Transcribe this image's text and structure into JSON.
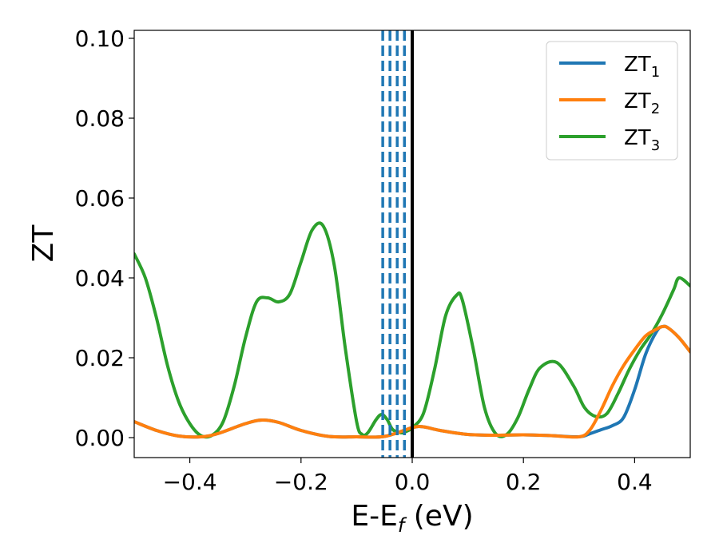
{
  "chart_data": {
    "type": "line",
    "title": "",
    "xlabel": "E-E",
    "xlabel_sub": "f",
    "xlabel_unit": " (eV)",
    "ylabel": "ZT",
    "xlim": [
      -0.5,
      0.5
    ],
    "ylim": [
      -0.005,
      0.102
    ],
    "xticks": [
      -0.4,
      -0.2,
      0.0,
      0.2,
      0.4
    ],
    "xtick_labels": [
      "−0.4",
      "−0.2",
      "0.0",
      "0.2",
      "0.4"
    ],
    "yticks": [
      0.0,
      0.02,
      0.04,
      0.06,
      0.08,
      0.1
    ],
    "ytick_labels": [
      "0.00",
      "0.02",
      "0.04",
      "0.06",
      "0.08",
      "0.10"
    ],
    "grid": false,
    "legend_position": "top-right",
    "vlines": [
      {
        "x": 0.0,
        "color": "#000000",
        "style": "solid"
      },
      {
        "x": -0.053,
        "color": "#1f77b4",
        "style": "dashed"
      },
      {
        "x": -0.04,
        "color": "#1f77b4",
        "style": "dashed"
      },
      {
        "x": -0.027,
        "color": "#1f77b4",
        "style": "dashed"
      },
      {
        "x": -0.014,
        "color": "#1f77b4",
        "style": "dashed"
      }
    ],
    "series": [
      {
        "name": "ZT",
        "name_sub": "1",
        "color": "#1f77b4",
        "x": [
          -0.5,
          -0.46,
          -0.42,
          -0.38,
          -0.35,
          -0.3,
          -0.27,
          -0.24,
          -0.2,
          -0.15,
          -0.1,
          -0.05,
          0.0,
          0.02,
          0.05,
          0.1,
          0.15,
          0.2,
          0.25,
          0.3,
          0.32,
          0.34,
          0.36,
          0.38,
          0.4,
          0.42,
          0.44,
          0.45,
          0.46,
          0.48,
          0.5
        ],
        "y": [
          0.004,
          0.0018,
          0.0004,
          0.0002,
          0.001,
          0.0035,
          0.0044,
          0.0038,
          0.0018,
          0.0003,
          0.0002,
          0.0003,
          0.0025,
          0.0027,
          0.0018,
          0.0008,
          0.0006,
          0.0007,
          0.0005,
          0.0002,
          0.001,
          0.002,
          0.003,
          0.005,
          0.012,
          0.021,
          0.0267,
          0.0278,
          0.0275,
          0.025,
          0.0215
        ]
      },
      {
        "name": "ZT",
        "name_sub": "2",
        "color": "#ff7f0e",
        "x": [
          -0.5,
          -0.46,
          -0.42,
          -0.38,
          -0.35,
          -0.3,
          -0.27,
          -0.24,
          -0.2,
          -0.15,
          -0.1,
          -0.05,
          0.0,
          0.02,
          0.05,
          0.1,
          0.15,
          0.2,
          0.25,
          0.3,
          0.32,
          0.34,
          0.36,
          0.38,
          0.4,
          0.42,
          0.44,
          0.45,
          0.46,
          0.48,
          0.5
        ],
        "y": [
          0.004,
          0.0018,
          0.0004,
          0.0002,
          0.001,
          0.0035,
          0.0044,
          0.0038,
          0.0018,
          0.0003,
          0.0002,
          0.0003,
          0.0025,
          0.0027,
          0.0018,
          0.0008,
          0.0006,
          0.0007,
          0.0005,
          0.0002,
          0.002,
          0.007,
          0.013,
          0.018,
          0.022,
          0.0255,
          0.0272,
          0.0278,
          0.0275,
          0.025,
          0.0215
        ]
      },
      {
        "name": "ZT",
        "name_sub": "3",
        "color": "#2ca02c",
        "x": [
          -0.5,
          -0.48,
          -0.46,
          -0.44,
          -0.42,
          -0.4,
          -0.38,
          -0.36,
          -0.34,
          -0.32,
          -0.3,
          -0.28,
          -0.26,
          -0.24,
          -0.22,
          -0.2,
          -0.18,
          -0.16,
          -0.14,
          -0.12,
          -0.1,
          -0.09,
          -0.08,
          -0.065,
          -0.055,
          -0.045,
          -0.035,
          -0.02,
          -0.01,
          0.0,
          0.02,
          0.04,
          0.06,
          0.08,
          0.09,
          0.11,
          0.13,
          0.15,
          0.17,
          0.19,
          0.21,
          0.23,
          0.26,
          0.29,
          0.31,
          0.33,
          0.35,
          0.37,
          0.39,
          0.41,
          0.43,
          0.45,
          0.47,
          0.48,
          0.5
        ],
        "y": [
          0.046,
          0.04,
          0.03,
          0.018,
          0.009,
          0.0035,
          0.0005,
          0.0006,
          0.004,
          0.013,
          0.025,
          0.034,
          0.035,
          0.034,
          0.036,
          0.044,
          0.052,
          0.053,
          0.043,
          0.022,
          0.004,
          0.0008,
          0.0012,
          0.0045,
          0.0058,
          0.0045,
          0.002,
          0.0012,
          0.0016,
          0.0025,
          0.006,
          0.017,
          0.0305,
          0.0357,
          0.0345,
          0.022,
          0.0075,
          0.001,
          0.0008,
          0.005,
          0.012,
          0.0175,
          0.0188,
          0.013,
          0.0075,
          0.0053,
          0.006,
          0.011,
          0.017,
          0.022,
          0.026,
          0.031,
          0.037,
          0.04,
          0.038
        ]
      }
    ]
  }
}
